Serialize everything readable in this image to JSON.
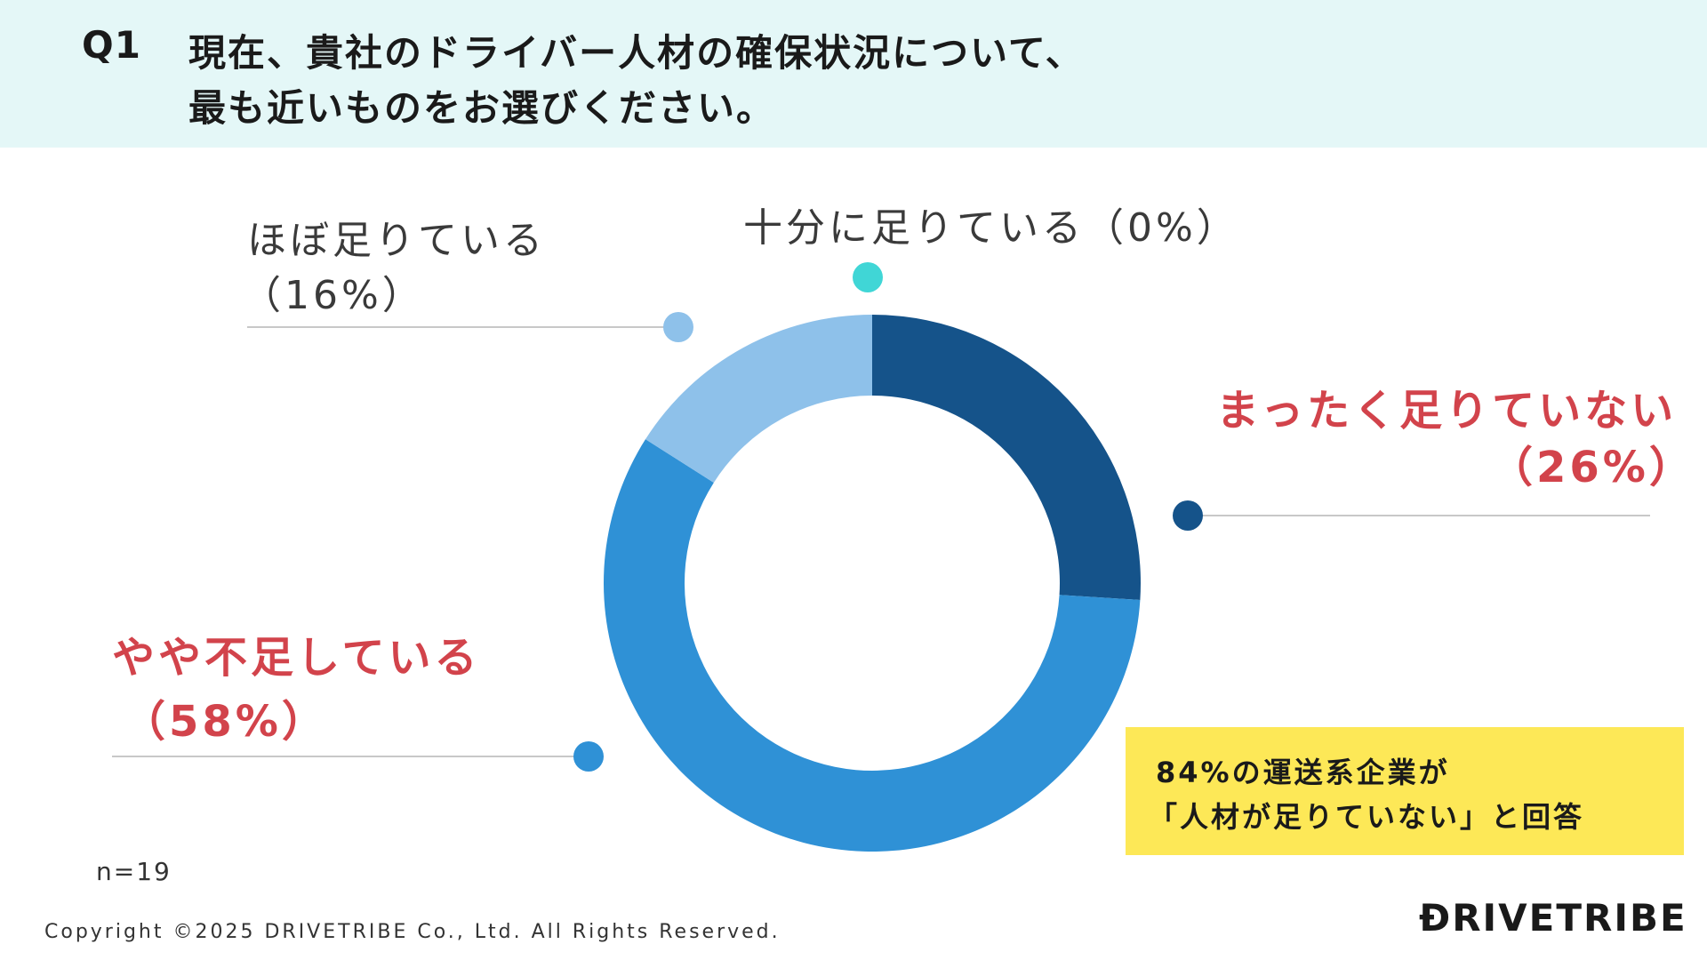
{
  "header": {
    "q_number": "Q1",
    "question_line1": "現在、貴社のドライバー人材の確保状況について、",
    "question_line2": "最も近いものをお選びください。"
  },
  "chart_data": {
    "type": "pie",
    "style": "donut",
    "categories": [
      "まったく足りていない",
      "やや不足している",
      "ほぼ足りている",
      "十分に足りている"
    ],
    "values": [
      26,
      58,
      16,
      0
    ],
    "unit": "%",
    "colors": [
      "#15538a",
      "#2f91d6",
      "#8ec1ea",
      "#40d6d6"
    ]
  },
  "labels": {
    "enough": "十分に足りている（0%）",
    "almost_name": "ほぼ足りている",
    "almost_pct": "（16%）",
    "none_name": "まったく足りていない",
    "none_pct": "（26%）",
    "some_name": "やや不足している",
    "some_pct": "（58%）"
  },
  "callout": {
    "line1": "84%の運送系企業が",
    "line2": "「人材が足りていない」と回答"
  },
  "footer": {
    "n": "n=19",
    "copyright": "Copyright ©2025 DRIVETRIBE Co., Ltd. All Rights Reserved.",
    "logo": "ĐRIVETRIBE"
  },
  "colors": {
    "header_bg": "#e4f7f7",
    "highlight_red": "#d2434b",
    "callout_bg": "#fde857",
    "leader_line": "#c8c8c8"
  }
}
